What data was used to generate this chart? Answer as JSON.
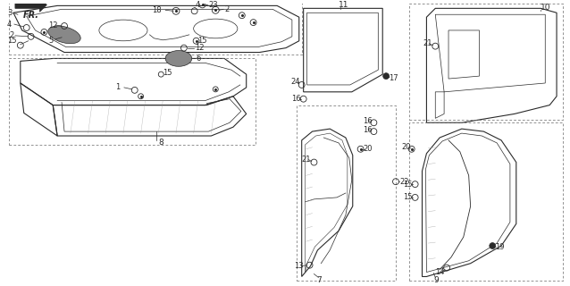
{
  "bg_color": "#ffffff",
  "line_color": "#2a2a2a",
  "fig_width": 6.38,
  "fig_height": 3.2,
  "dpi": 100,
  "fr_label": "FR."
}
